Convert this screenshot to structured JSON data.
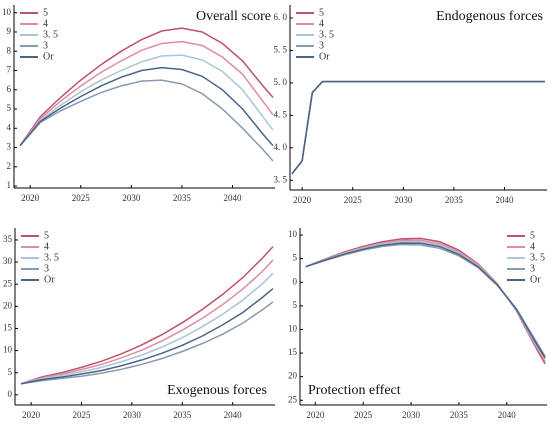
{
  "chart_data": [
    {
      "type": "line",
      "title": "Overall score",
      "legend": "upper left",
      "x": [
        2019,
        2021,
        2023,
        2025,
        2027,
        2029,
        2031,
        2033,
        2035,
        2037,
        2039,
        2041,
        2043,
        2044
      ],
      "xlim": [
        2018.4,
        2044.2
      ],
      "xticks": [
        2020,
        2025,
        2030,
        2035,
        2040
      ],
      "ylim": [
        0.9,
        10.4
      ],
      "yticks": [
        1,
        2,
        3,
        4,
        5,
        6,
        7,
        8,
        9,
        10
      ],
      "series": [
        {
          "name": "5",
          "color": "#c0506e",
          "values": [
            3.1,
            4.6,
            5.6,
            6.5,
            7.3,
            8.0,
            8.6,
            9.05,
            9.2,
            9.0,
            8.4,
            7.5,
            6.2,
            5.6
          ]
        },
        {
          "name": "4",
          "color": "#e08da0",
          "values": [
            3.1,
            4.5,
            5.4,
            6.2,
            6.9,
            7.5,
            8.05,
            8.4,
            8.5,
            8.3,
            7.7,
            6.8,
            5.4,
            4.7
          ]
        },
        {
          "name": "3. 5",
          "color": "#aac4dc",
          "values": [
            3.1,
            4.4,
            5.2,
            5.9,
            6.5,
            7.0,
            7.45,
            7.75,
            7.8,
            7.55,
            6.95,
            6.0,
            4.6,
            3.9
          ]
        },
        {
          "name": "3",
          "color": "#8a9aae",
          "values": [
            3.1,
            4.3,
            4.9,
            5.4,
            5.85,
            6.2,
            6.45,
            6.5,
            6.3,
            5.8,
            5.0,
            4.0,
            2.9,
            2.3
          ]
        },
        {
          "name": "Or",
          "color": "#4a6584",
          "values": [
            3.1,
            4.35,
            5.05,
            5.65,
            6.2,
            6.65,
            7.0,
            7.15,
            7.05,
            6.7,
            6.0,
            5.0,
            3.7,
            3.1
          ]
        }
      ]
    },
    {
      "type": "line",
      "title": "Endogenous forces",
      "legend": "upper left",
      "x": [
        2019,
        2020,
        2021,
        2022,
        2044
      ],
      "xlim": [
        2018.8,
        2044.2
      ],
      "xticks": [
        2020,
        2025,
        2030,
        2035,
        2040
      ],
      "ylim": [
        3.35,
        6.2
      ],
      "yticks": [
        {
          "value": 3.5,
          "label": "3. 5"
        },
        {
          "value": 4.0,
          "label": "4. 0"
        },
        {
          "value": 4.5,
          "label": "4. 5"
        },
        {
          "value": 5.0,
          "label": "5. 0"
        },
        {
          "value": 5.5,
          "label": "5. 5"
        },
        {
          "value": 6.0,
          "label": "6. 0"
        }
      ],
      "series": [
        {
          "name": "5",
          "color": "#c0506e",
          "values": [
            3.6,
            3.8,
            4.85,
            5.02,
            5.02
          ]
        },
        {
          "name": "4",
          "color": "#e08da0",
          "values": [
            3.6,
            3.8,
            4.85,
            5.02,
            5.02
          ]
        },
        {
          "name": "3. 5",
          "color": "#aac4dc",
          "values": [
            3.6,
            3.8,
            4.85,
            5.02,
            5.02
          ]
        },
        {
          "name": "3",
          "color": "#8a9aae",
          "values": [
            3.6,
            3.8,
            4.85,
            5.02,
            5.02
          ]
        },
        {
          "name": "Or",
          "color": "#4a6584",
          "values": [
            3.6,
            3.8,
            4.85,
            5.02,
            5.02
          ]
        }
      ]
    },
    {
      "type": "line",
      "title": "Exogenous forces",
      "legend": "upper left",
      "x": [
        2019,
        2021,
        2023,
        2025,
        2027,
        2029,
        2031,
        2033,
        2035,
        2037,
        2039,
        2041,
        2043,
        2044
      ],
      "xlim": [
        2018.4,
        2044.2
      ],
      "xticks": [
        2020,
        2025,
        2030,
        2035,
        2040
      ],
      "ylim": [
        -2.3,
        37.7
      ],
      "yticks": [
        0,
        5,
        10,
        15,
        20,
        25,
        30,
        35
      ],
      "series": [
        {
          "name": "5",
          "color": "#c0506e",
          "values": [
            2.5,
            4.0,
            5.0,
            6.2,
            7.6,
            9.3,
            11.3,
            13.6,
            16.3,
            19.3,
            22.7,
            26.5,
            31.0,
            33.5
          ]
        },
        {
          "name": "4",
          "color": "#e08da0",
          "values": [
            2.5,
            3.8,
            4.7,
            5.7,
            6.9,
            8.4,
            10.1,
            12.2,
            14.6,
            17.3,
            20.4,
            23.9,
            28.0,
            30.5
          ]
        },
        {
          "name": "3. 5",
          "color": "#aac4dc",
          "values": [
            2.5,
            3.6,
            4.4,
            5.2,
            6.2,
            7.5,
            9.0,
            10.8,
            12.9,
            15.4,
            18.2,
            21.4,
            25.2,
            27.5
          ]
        },
        {
          "name": "3",
          "color": "#8a9aae",
          "values": [
            2.5,
            3.2,
            3.7,
            4.2,
            4.9,
            5.8,
            6.9,
            8.2,
            9.8,
            11.6,
            13.7,
            16.2,
            19.3,
            21
          ]
        },
        {
          "name": "Or",
          "color": "#4a6584",
          "values": [
            2.5,
            3.4,
            4.0,
            4.7,
            5.5,
            6.6,
            7.9,
            9.4,
            11.2,
            13.3,
            15.8,
            18.6,
            22.1,
            24
          ]
        }
      ]
    },
    {
      "type": "line",
      "title": "Protection effect",
      "legend": "upper right",
      "x": [
        2019,
        2021,
        2023,
        2025,
        2027,
        2029,
        2031,
        2033,
        2035,
        2037,
        2039,
        2041,
        2043,
        2044
      ],
      "xlim": [
        2018.4,
        2044.2
      ],
      "xticks": [
        2020,
        2025,
        2030,
        2035,
        2040
      ],
      "ylim": [
        -26,
        11.5
      ],
      "yticks": [
        10,
        5,
        0,
        {
          "value": -5,
          "label": "5"
        },
        {
          "value": -10,
          "label": "10"
        },
        {
          "value": -15,
          "label": "15"
        },
        {
          "value": -20,
          "label": "20"
        },
        {
          "value": -25,
          "label": "25"
        }
      ],
      "series": [
        {
          "name": "5",
          "color": "#c0506e",
          "values": [
            3.3,
            4.9,
            6.4,
            7.6,
            8.6,
            9.2,
            9.3,
            8.6,
            6.8,
            3.9,
            -0.3,
            -6.0,
            -13.7,
            -17.3
          ]
        },
        {
          "name": "4",
          "color": "#e08da0",
          "values": [
            3.3,
            4.8,
            6.2,
            7.4,
            8.3,
            8.9,
            8.9,
            8.2,
            6.5,
            3.7,
            -0.4,
            -5.9,
            -13.3,
            -16.8
          ]
        },
        {
          "name": "3. 5",
          "color": "#aac4dc",
          "values": [
            3.3,
            4.75,
            6.1,
            7.2,
            8.1,
            8.6,
            8.6,
            7.9,
            6.2,
            3.5,
            -0.5,
            -5.8,
            -13.0,
            -16.3
          ]
        },
        {
          "name": "3",
          "color": "#8a9aae",
          "values": [
            3.3,
            4.6,
            5.8,
            6.8,
            7.6,
            8.0,
            7.9,
            7.2,
            5.6,
            3.1,
            -0.6,
            -5.6,
            -12.3,
            -15.7
          ]
        },
        {
          "name": "Or",
          "color": "#4a6584",
          "values": [
            3.3,
            4.7,
            5.95,
            7.0,
            7.85,
            8.3,
            8.25,
            7.55,
            5.9,
            3.3,
            -0.55,
            -5.7,
            -12.7,
            -16.0
          ]
        }
      ]
    }
  ]
}
